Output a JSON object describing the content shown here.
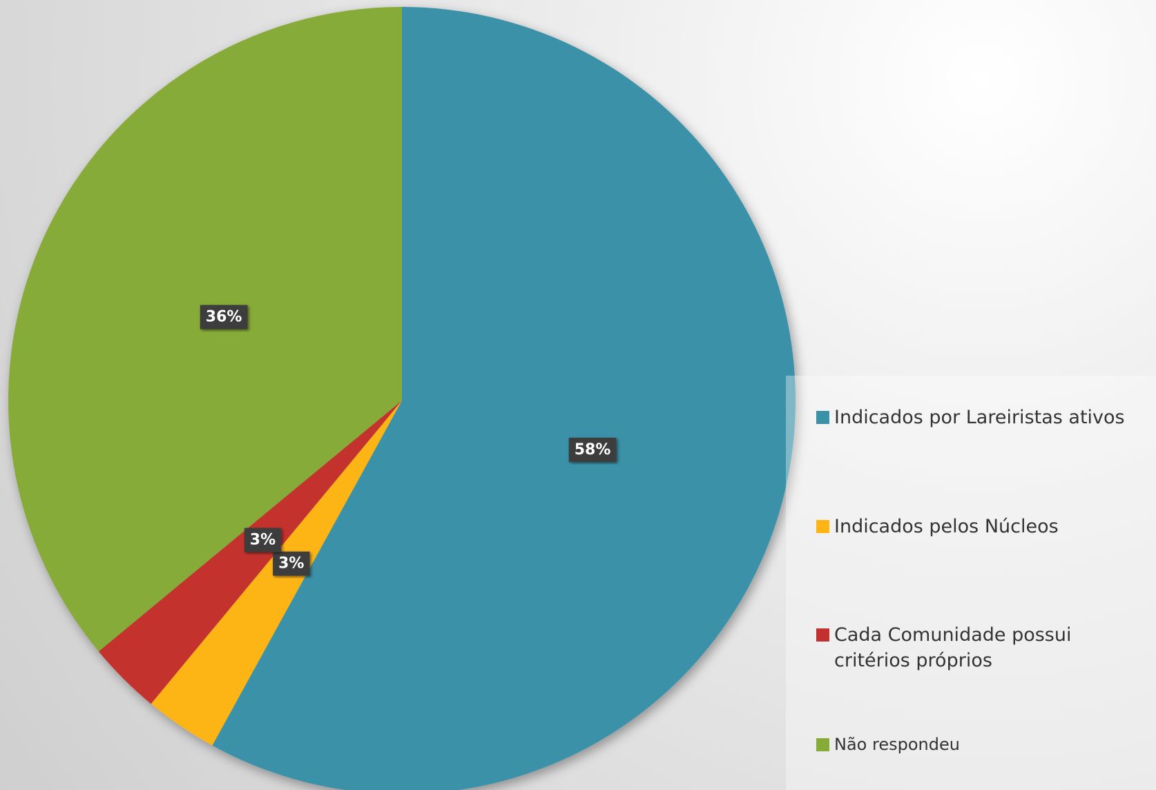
{
  "chart_data": {
    "type": "pie",
    "categories": [
      "Indicados por Lareiristas ativos",
      "Indicados pelos Núcleos",
      "Cada Comunidade possui critérios próprios",
      "Não respondeu"
    ],
    "values": [
      58,
      3,
      3,
      36
    ],
    "value_labels": [
      "58%",
      "3%",
      "3%",
      "36%"
    ],
    "colors": [
      "#3a91a8",
      "#fdb515",
      "#c4302f",
      "#87ab37"
    ],
    "legend": "right"
  }
}
